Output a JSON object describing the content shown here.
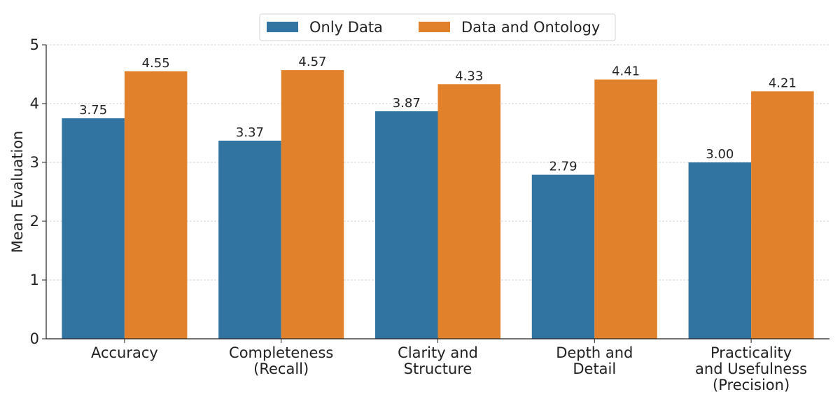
{
  "chart_data": {
    "type": "bar",
    "title": "",
    "xlabel": "",
    "ylabel": "Mean Evaluation",
    "ylim": [
      0,
      5
    ],
    "yticks": [
      "0",
      "1",
      "2",
      "3",
      "4",
      "5"
    ],
    "grid": "horizontal dashed",
    "legend_position": "top-center",
    "categories": [
      [
        "Accuracy"
      ],
      [
        "Completeness",
        "(Recall)"
      ],
      [
        "Clarity and",
        "Structure"
      ],
      [
        "Depth and",
        "Detail"
      ],
      [
        "Practicality",
        "and Usefulness",
        "(Precision)"
      ]
    ],
    "series": [
      {
        "name": "Only Data",
        "color": "#3274a1",
        "values": [
          3.75,
          3.37,
          3.87,
          2.79,
          3.0
        ],
        "labels": [
          "3.75",
          "3.37",
          "3.87",
          "2.79",
          "3.00"
        ]
      },
      {
        "name": "Data and Ontology",
        "color": "#e1812c",
        "values": [
          4.55,
          4.57,
          4.33,
          4.41,
          4.21
        ],
        "labels": [
          "4.55",
          "4.57",
          "4.33",
          "4.41",
          "4.21"
        ]
      }
    ]
  }
}
